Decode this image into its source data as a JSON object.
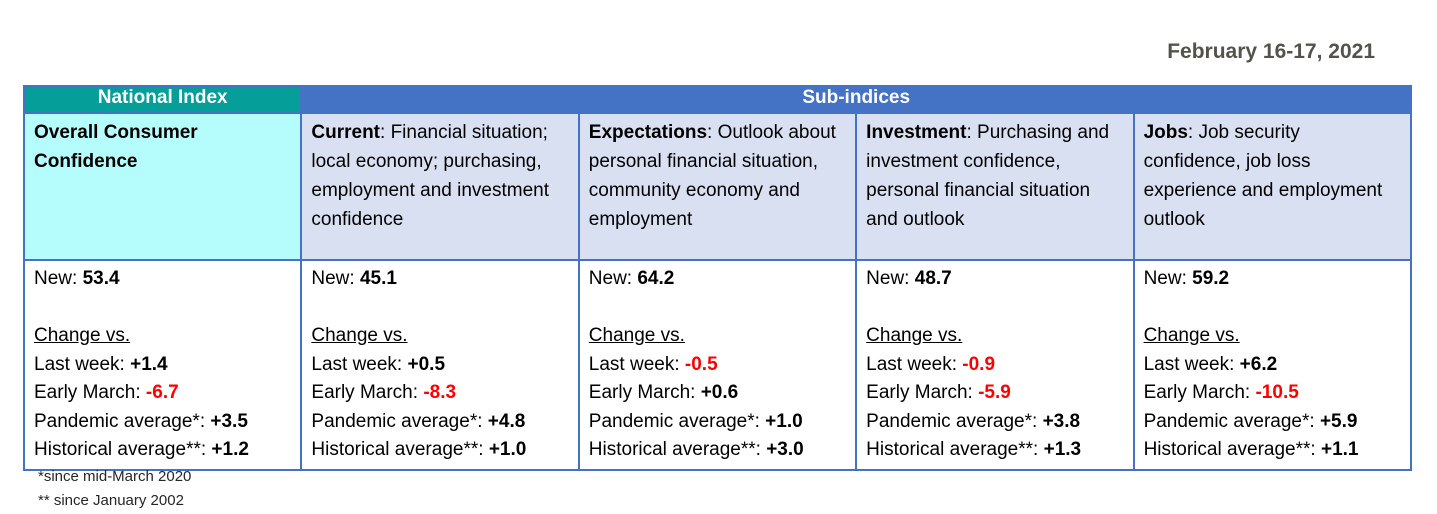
{
  "date_label": "February 16-17, 2021",
  "colors": {
    "teal_header_bg": "#059E98",
    "blue_header_bg": "#4472C4",
    "national_desc_bg": "#B5FCFC",
    "sub_desc_bg": "#D9E0F2",
    "border_blue": "#4472C4",
    "negative_red": "#FF0000",
    "date_text": "#53534B",
    "footnote_text": "#262626"
  },
  "table": {
    "headers": {
      "national": "National Index",
      "sub": "Sub-indices"
    },
    "columns": [
      {
        "id": "overall",
        "desc_term": "Overall Consumer Confidence",
        "desc_rest": "",
        "new_label": "New:",
        "new_value": "53.4",
        "change_label": "Change vs.",
        "rows": [
          {
            "label": "Last week:",
            "value": "+1.4",
            "negative": false
          },
          {
            "label": "Early March:",
            "value": "-6.7",
            "negative": true
          },
          {
            "label": "Pandemic average*:",
            "value": "+3.5",
            "negative": false
          },
          {
            "label": "Historical average**:",
            "value": "+1.2",
            "negative": false
          }
        ]
      },
      {
        "id": "current",
        "desc_term": "Current",
        "desc_rest": ": Financial situation; local economy; purchasing, employment and investment confidence",
        "new_label": "New:",
        "new_value": "45.1",
        "change_label": "Change vs.",
        "rows": [
          {
            "label": "Last week:",
            "value": "+0.5",
            "negative": false
          },
          {
            "label": "Early March:",
            "value": "-8.3",
            "negative": true
          },
          {
            "label": "Pandemic average*:",
            "value": "+4.8",
            "negative": false
          },
          {
            "label": "Historical average**:",
            "value": "+1.0",
            "negative": false
          }
        ]
      },
      {
        "id": "expectations",
        "desc_term": "Expectations",
        "desc_rest": ": Outlook about personal financial situation, community economy and employment",
        "new_label": "New:",
        "new_value": "64.2",
        "change_label": "Change vs.",
        "rows": [
          {
            "label": "Last week:",
            "value": "-0.5",
            "negative": true
          },
          {
            "label": "Early March:",
            "value": "+0.6",
            "negative": false
          },
          {
            "label": "Pandemic average*:",
            "value": "+1.0",
            "negative": false
          },
          {
            "label": "Historical average**:",
            "value": "+3.0",
            "negative": false
          }
        ]
      },
      {
        "id": "investment",
        "desc_term": "Investment",
        "desc_rest": ": Purchasing and investment confidence, personal financial situation and outlook",
        "new_label": "New:",
        "new_value": "48.7",
        "change_label": "Change vs.",
        "rows": [
          {
            "label": "Last week:",
            "value": "-0.9",
            "negative": true
          },
          {
            "label": "Early March:",
            "value": "-5.9",
            "negative": true
          },
          {
            "label": "Pandemic average*:",
            "value": "+3.8",
            "negative": false
          },
          {
            "label": "Historical average**:",
            "value": "+1.3",
            "negative": false
          }
        ]
      },
      {
        "id": "jobs",
        "desc_term": "Jobs",
        "desc_rest": ": Job security confidence, job loss experience and employment outlook",
        "new_label": "New:",
        "new_value": "59.2",
        "change_label": "Change vs.",
        "rows": [
          {
            "label": "Last week:",
            "value": "+6.2",
            "negative": false
          },
          {
            "label": "Early March:",
            "value": "-10.5",
            "negative": true
          },
          {
            "label": "Pandemic average*:",
            "value": "+5.9",
            "negative": false
          },
          {
            "label": "Historical average**:",
            "value": "+1.1",
            "negative": false
          }
        ]
      }
    ]
  },
  "footnotes": [
    "*since mid-March 2020",
    "** since January 2002"
  ]
}
